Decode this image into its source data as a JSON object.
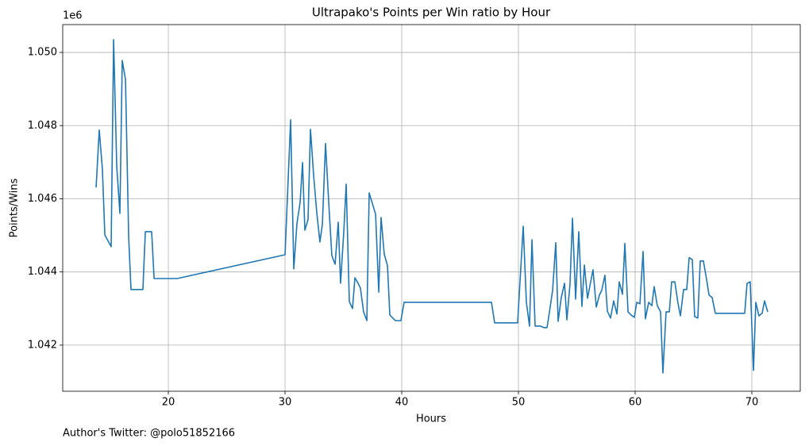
{
  "chart_data": {
    "type": "line",
    "title": "Ultrapako's Points per Win ratio by Hour",
    "x_label": "Hours",
    "y_label": "Points/Wins",
    "y_offset_text": "1e6",
    "footnote": "Author's Twitter: @polo51852166",
    "grid": true,
    "xlim": [
      10.95,
      74.15
    ],
    "ylim": [
      1.04074,
      1.05076
    ],
    "xticks": [
      20,
      30,
      40,
      50,
      60,
      70
    ],
    "yticks": [
      1.042,
      1.044,
      1.046,
      1.048,
      {
        "value": 1.05,
        "label": "1.050"
      }
    ],
    "x": [
      13.81,
      14.08,
      14.35,
      14.56,
      15.1,
      15.31,
      15.58,
      15.85,
      16.05,
      16.33,
      16.6,
      16.8,
      17.82,
      18.03,
      18.57,
      18.78,
      20.75,
      30,
      30.48,
      30.75,
      31.02,
      31.29,
      31.5,
      31.7,
      31.97,
      32.18,
      32.45,
      32.72,
      32.99,
      33.2,
      33.47,
      33.74,
      34.01,
      34.29,
      34.56,
      34.76,
      35.03,
      35.24,
      35.51,
      35.78,
      35.99,
      36.26,
      36.46,
      36.73,
      37.01,
      37.21,
      37.76,
      38.03,
      38.23,
      38.5,
      38.78,
      38.98,
      39.46,
      39.93,
      40.2,
      47.69,
      47.96,
      49.93,
      50.41,
      50.68,
      50.95,
      51.16,
      51.43,
      51.9,
      52.18,
      52.45,
      52.65,
      52.93,
      53.2,
      53.4,
      53.67,
      53.95,
      54.15,
      54.42,
      54.63,
      54.9,
      55.17,
      55.44,
      55.65,
      55.92,
      56.19,
      56.39,
      56.67,
      56.94,
      57.14,
      57.41,
      57.62,
      57.89,
      58.16,
      58.44,
      58.64,
      58.91,
      59.12,
      59.39,
      59.66,
      59.93,
      60.14,
      60.41,
      60.68,
      60.88,
      61.16,
      61.43,
      61.63,
      61.9,
      62.18,
      62.38,
      62.65,
      62.93,
      63.13,
      63.4,
      63.67,
      63.88,
      64.15,
      64.42,
      64.63,
      64.9,
      65.1,
      65.37,
      65.58,
      65.85,
      66.12,
      66.33,
      66.6,
      66.87,
      69.39,
      69.59,
      69.86,
      70.14,
      70.34,
      70.61,
      70.88,
      71.09,
      71.36
    ],
    "series": [
      {
        "color": "#1f77b4",
        "values": [
          1.04631,
          1.04788,
          1.04681,
          1.04501,
          1.04469,
          1.05035,
          1.04688,
          1.0456,
          1.04978,
          1.04926,
          1.04497,
          1.04352,
          1.04352,
          1.0451,
          1.0451,
          1.04382,
          1.04382,
          1.04447,
          1.04816,
          1.04408,
          1.04532,
          1.0459,
          1.04699,
          1.04514,
          1.04543,
          1.0479,
          1.04664,
          1.04562,
          1.04482,
          1.0453,
          1.04751,
          1.04592,
          1.04445,
          1.04421,
          1.04536,
          1.04369,
          1.04508,
          1.0464,
          1.04319,
          1.043,
          1.04384,
          1.04369,
          1.04356,
          1.04291,
          1.04267,
          1.04616,
          1.04558,
          1.04345,
          1.04549,
          1.04449,
          1.04417,
          1.04282,
          1.04267,
          1.04267,
          1.04317,
          1.04317,
          1.04261,
          1.04261,
          1.04525,
          1.04317,
          1.04252,
          1.04488,
          1.04252,
          1.04252,
          1.04248,
          1.04248,
          1.04289,
          1.0435,
          1.0448,
          1.04265,
          1.0433,
          1.04369,
          1.04269,
          1.04367,
          1.04547,
          1.04326,
          1.0451,
          1.04306,
          1.04419,
          1.04328,
          1.04373,
          1.04406,
          1.04304,
          1.04337,
          1.0435,
          1.04391,
          1.04293,
          1.04274,
          1.04321,
          1.04285,
          1.04373,
          1.04339,
          1.04478,
          1.04291,
          1.04282,
          1.04276,
          1.04317,
          1.04313,
          1.04456,
          1.04272,
          1.04317,
          1.04308,
          1.0436,
          1.04308,
          1.04291,
          1.04124,
          1.04291,
          1.04291,
          1.04373,
          1.04373,
          1.04315,
          1.0428,
          1.04352,
          1.04352,
          1.04439,
          1.04434,
          1.04278,
          1.04274,
          1.0443,
          1.0443,
          1.0438,
          1.04337,
          1.0433,
          1.04287,
          1.04287,
          1.04369,
          1.04373,
          1.04131,
          1.04317,
          1.0428,
          1.04287,
          1.04321,
          1.04291
        ]
      }
    ]
  }
}
